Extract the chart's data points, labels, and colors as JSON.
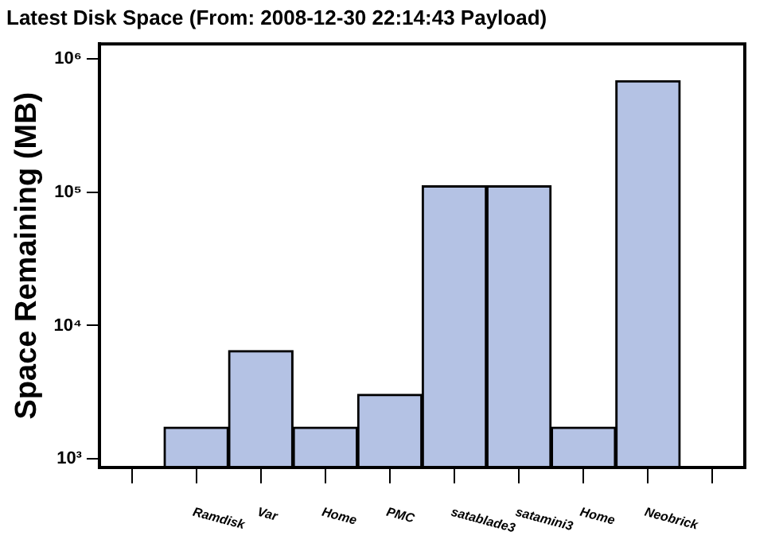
{
  "chart_data": {
    "type": "bar",
    "title": "Latest Disk Space (From: 2008-12-30 22:14:43 Payload)",
    "ylabel": "Space Remaining (MB)",
    "categories": [
      null,
      "Ramdisk",
      "Var",
      "Home",
      "PMC",
      "satablade3",
      "satamini3",
      "Home",
      "Neobrick",
      null
    ],
    "values": [
      null,
      1730,
      6500,
      1730,
      3050,
      112000,
      112000,
      1730,
      690000,
      null
    ],
    "color": "#b4c2e4",
    "log": true,
    "ylim": [
      860,
      1300000
    ],
    "yticks": [
      {
        "value": 1000,
        "label": "10³"
      },
      {
        "value": 10000,
        "label": "10⁴"
      },
      {
        "value": 100000,
        "label": "10⁵"
      },
      {
        "value": 1000000,
        "label": "10⁶"
      }
    ],
    "grid": false,
    "legend": false
  }
}
